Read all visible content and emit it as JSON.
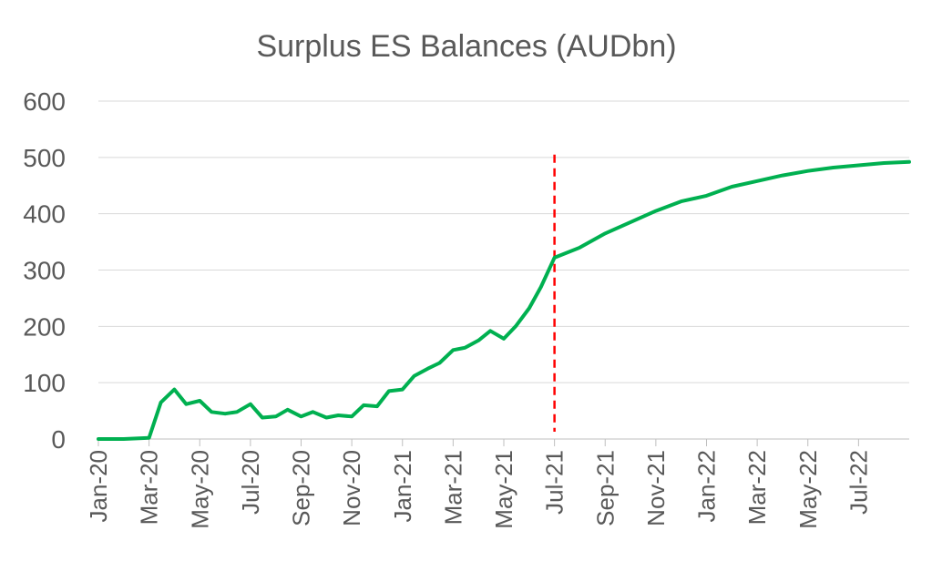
{
  "chart_data": {
    "type": "line",
    "title": "Surplus ES Balances (AUDbn)",
    "xlabel": "",
    "ylabel": "",
    "ylim": [
      0,
      600
    ],
    "yticks": [
      0,
      100,
      200,
      300,
      400,
      500,
      600
    ],
    "x_range": [
      "2020-01",
      "2022-09"
    ],
    "x_tick_labels": [
      "Jan-20",
      "Mar-20",
      "May-20",
      "Jul-20",
      "Sep-20",
      "Nov-20",
      "Jan-21",
      "Mar-21",
      "May-21",
      "Jul-21",
      "Sep-21",
      "Nov-21",
      "Jan-22",
      "Mar-22",
      "May-22",
      "Jul-22"
    ],
    "x_tick_dates": [
      "2020-01",
      "2020-03",
      "2020-05",
      "2020-07",
      "2020-09",
      "2020-11",
      "2021-01",
      "2021-03",
      "2021-05",
      "2021-07",
      "2021-09",
      "2021-11",
      "2022-01",
      "2022-03",
      "2022-05",
      "2022-07"
    ],
    "grid": true,
    "legend": "none",
    "line_color": "#00B050",
    "marker_line": {
      "x": "2021-07",
      "color": "#FF0000",
      "style": "dashed"
    },
    "series": [
      {
        "x": [
          "2020-01",
          "2020-02",
          "2020-03",
          "2020-03-15",
          "2020-04",
          "2020-04-15",
          "2020-05",
          "2020-05-15",
          "2020-06",
          "2020-06-15",
          "2020-07",
          "2020-07-15",
          "2020-08",
          "2020-08-15",
          "2020-09",
          "2020-09-15",
          "2020-10",
          "2020-10-15",
          "2020-11",
          "2020-11-15",
          "2020-12",
          "2020-12-15",
          "2021-01",
          "2021-01-15",
          "2021-02",
          "2021-02-15",
          "2021-03",
          "2021-03-15",
          "2021-04",
          "2021-04-15",
          "2021-05",
          "2021-05-15",
          "2021-06",
          "2021-06-15",
          "2021-07",
          "2021-08",
          "2021-09",
          "2021-10",
          "2021-11",
          "2021-12",
          "2022-01",
          "2022-02",
          "2022-03",
          "2022-04",
          "2022-05",
          "2022-06",
          "2022-07",
          "2022-08",
          "2022-09"
        ],
        "values": [
          0,
          0,
          2,
          65,
          88,
          62,
          68,
          48,
          45,
          48,
          62,
          38,
          40,
          52,
          40,
          48,
          38,
          42,
          40,
          60,
          58,
          85,
          88,
          112,
          125,
          135,
          158,
          162,
          175,
          192,
          178,
          200,
          232,
          270,
          322,
          340,
          365,
          385,
          405,
          422,
          432,
          448,
          458,
          468,
          476,
          482,
          486,
          490,
          492
        ]
      }
    ]
  }
}
